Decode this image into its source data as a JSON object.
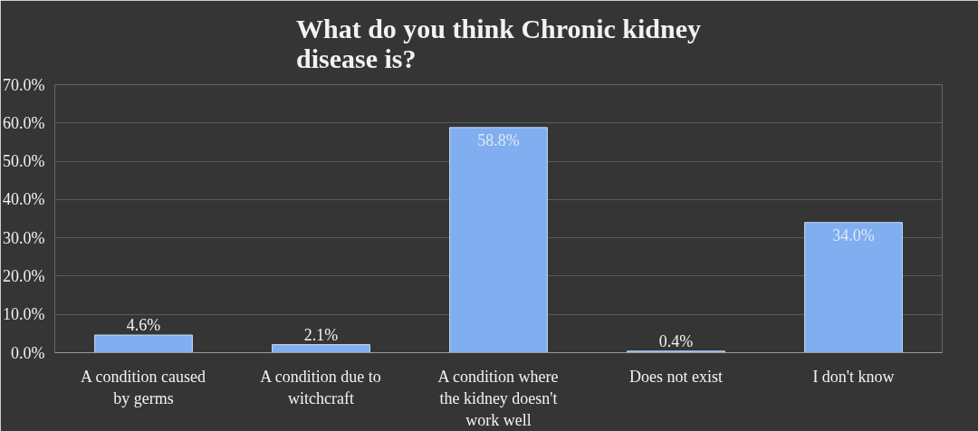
{
  "chart_data": {
    "type": "bar",
    "title": "What do you think Chronic kidney disease is?",
    "categories": [
      "A condition caused by germs",
      "A condition due to witchcraft",
      "A condition where the kidney doesn't work well",
      "Does not exist",
      "I don't know"
    ],
    "values": [
      4.6,
      2.1,
      58.8,
      0.4,
      34.0
    ],
    "color": "#80aef0",
    "ylim": [
      0,
      70
    ],
    "yticks": [
      {
        "value": 0,
        "label": "0.0%"
      },
      {
        "value": 10,
        "label": "10.0%"
      },
      {
        "value": 20,
        "label": "20.0%"
      },
      {
        "value": 30,
        "label": "30.0%"
      },
      {
        "value": 40,
        "label": "40.0%"
      },
      {
        "value": 50,
        "label": "50.0%"
      },
      {
        "value": 60,
        "label": "60.0%"
      },
      {
        "value": 70,
        "label": "70.0%"
      }
    ],
    "value_labels": [
      "4.6%",
      "2.1%",
      "58.8%",
      "0.4%",
      "34.0%"
    ],
    "grid": "y"
  }
}
